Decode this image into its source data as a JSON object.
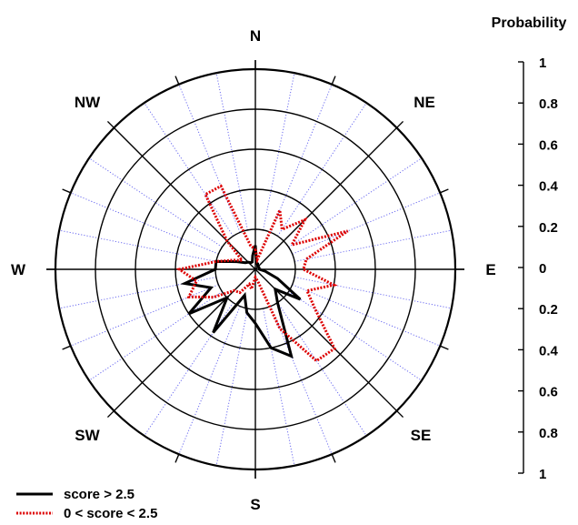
{
  "chart_data": {
    "type": "polar-line",
    "axis_title": "Probability",
    "directions": [
      "N",
      "NE",
      "E",
      "SE",
      "S",
      "SW",
      "W",
      "NW"
    ],
    "radial_ticks": [
      "0",
      "0.2",
      "0.4",
      "0.6",
      "0.8",
      "1"
    ],
    "radial_range": [
      0,
      1
    ],
    "grid": true,
    "legend_position": "bottom-left",
    "colors": {
      "series_1": "#000000",
      "series_2": "#dd0000",
      "minor_grid": "#6a6af0"
    },
    "series": [
      {
        "name": "score > 2.5",
        "line_style": "solid",
        "points": [
          {
            "bearing": 0,
            "r": 0.12
          },
          {
            "bearing": 11.25,
            "r": 0.03
          },
          {
            "bearing": 22.5,
            "r": 0.03
          },
          {
            "bearing": 33.75,
            "r": 0.02
          },
          {
            "bearing": 45,
            "r": 0.02
          },
          {
            "bearing": 56.25,
            "r": 0.02
          },
          {
            "bearing": 67.5,
            "r": 0.02
          },
          {
            "bearing": 78.75,
            "r": 0.02
          },
          {
            "bearing": 90,
            "r": 0.02
          },
          {
            "bearing": 101.25,
            "r": 0.05
          },
          {
            "bearing": 112.5,
            "r": 0.12
          },
          {
            "bearing": 123.75,
            "r": 0.27
          },
          {
            "bearing": 135,
            "r": 0.14
          },
          {
            "bearing": 146.25,
            "r": 0.2
          },
          {
            "bearing": 157.5,
            "r": 0.47
          },
          {
            "bearing": 168.75,
            "r": 0.4
          },
          {
            "bearing": 180,
            "r": 0.27
          },
          {
            "bearing": 191.25,
            "r": 0.22
          },
          {
            "bearing": 202.5,
            "r": 0.14
          },
          {
            "bearing": 213.75,
            "r": 0.38
          },
          {
            "bearing": 225,
            "r": 0.2
          },
          {
            "bearing": 236.25,
            "r": 0.4
          },
          {
            "bearing": 247.5,
            "r": 0.24
          },
          {
            "bearing": 258.75,
            "r": 0.36
          },
          {
            "bearing": 270,
            "r": 0.2
          },
          {
            "bearing": 281.25,
            "r": 0.2
          },
          {
            "bearing": 292.5,
            "r": 0.1
          },
          {
            "bearing": 303.75,
            "r": 0.06
          },
          {
            "bearing": 315,
            "r": 0.05
          },
          {
            "bearing": 326.25,
            "r": 0.04
          },
          {
            "bearing": 337.5,
            "r": 0.04
          },
          {
            "bearing": 348.75,
            "r": 0.07
          }
        ]
      },
      {
        "name": "0 < score < 2.5",
        "line_style": "dotted",
        "points": [
          {
            "bearing": 0,
            "r": 0.1
          },
          {
            "bearing": 11.25,
            "r": 0.05
          },
          {
            "bearing": 22.5,
            "r": 0.32
          },
          {
            "bearing": 33.75,
            "r": 0.24
          },
          {
            "bearing": 45,
            "r": 0.35
          },
          {
            "bearing": 56.25,
            "r": 0.22
          },
          {
            "bearing": 67.5,
            "r": 0.5
          },
          {
            "bearing": 78.75,
            "r": 0.26
          },
          {
            "bearing": 90,
            "r": 0.24
          },
          {
            "bearing": 101.25,
            "r": 0.4
          },
          {
            "bearing": 112.5,
            "r": 0.28
          },
          {
            "bearing": 123.75,
            "r": 0.36
          },
          {
            "bearing": 135,
            "r": 0.56
          },
          {
            "bearing": 146.25,
            "r": 0.55
          },
          {
            "bearing": 157.5,
            "r": 0.32
          },
          {
            "bearing": 168.75,
            "r": 0.06
          },
          {
            "bearing": 180,
            "r": 0.04
          },
          {
            "bearing": 191.25,
            "r": 0.1
          },
          {
            "bearing": 202.5,
            "r": 0.08
          },
          {
            "bearing": 213.75,
            "r": 0.14
          },
          {
            "bearing": 225,
            "r": 0.15
          },
          {
            "bearing": 236.25,
            "r": 0.25
          },
          {
            "bearing": 247.5,
            "r": 0.36
          },
          {
            "bearing": 258.75,
            "r": 0.3
          },
          {
            "bearing": 270,
            "r": 0.38
          },
          {
            "bearing": 281.25,
            "r": 0.2
          },
          {
            "bearing": 292.5,
            "r": 0.12
          },
          {
            "bearing": 303.75,
            "r": 0.08
          },
          {
            "bearing": 315,
            "r": 0.2
          },
          {
            "bearing": 326.25,
            "r": 0.45
          },
          {
            "bearing": 337.5,
            "r": 0.45
          },
          {
            "bearing": 348.75,
            "r": 0.12
          }
        ]
      }
    ]
  }
}
